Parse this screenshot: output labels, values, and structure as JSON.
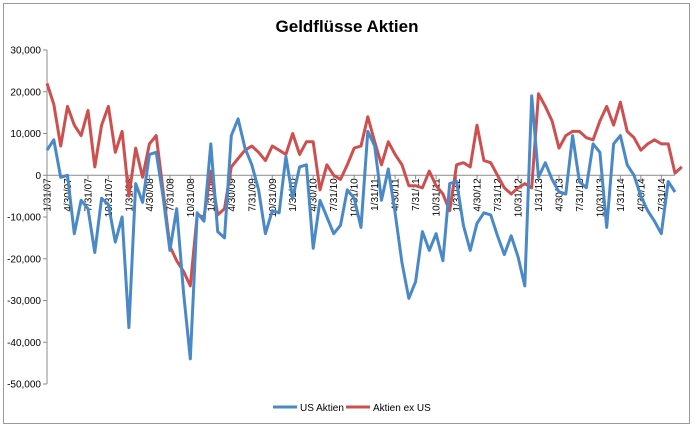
{
  "chart_data": {
    "type": "line",
    "title": "Geldflüsse Aktien",
    "xlabel": "",
    "ylabel": "",
    "ylim": [
      -50000,
      30000
    ],
    "yticks": [
      30000,
      20000,
      10000,
      0,
      -10000,
      -20000,
      -30000,
      -40000,
      -50000
    ],
    "ytick_labels": [
      "30,000",
      "20,000",
      "10,000",
      "0",
      "-10,000",
      "-20,000",
      "-30,000",
      "-40,000",
      "-50,000"
    ],
    "xtick_labels": [
      "1/31/07",
      "4/30/07",
      "7/31/07",
      "10/31/07",
      "1/31/08",
      "4/30/08",
      "7/31/08",
      "10/31/08",
      "1/31/09",
      "4/30/09",
      "7/31/09",
      "10/31/09",
      "1/31/10",
      "4/30/10",
      "7/31/10",
      "10/31/10",
      "1/31/11",
      "4/30/11",
      "7/31/11",
      "10/31/11",
      "1/31/12",
      "4/30/12",
      "7/31/12",
      "10/31/12",
      "1/31/13",
      "4/30/13",
      "7/31/13",
      "10/31/13",
      "1/31/14",
      "4/30/14",
      "7/31/14"
    ],
    "grid": false,
    "legend_position": "bottom",
    "series": [
      {
        "name": "US Aktien",
        "color": "#4a89c8",
        "values": [
          6000,
          8500,
          -500,
          0,
          -14000,
          -6000,
          -8000,
          -18500,
          -5500,
          -7000,
          -16000,
          -10000,
          -36500,
          -2000,
          -6500,
          5000,
          5500,
          -5000,
          -18000,
          -8000,
          -28000,
          -44000,
          -9000,
          -11000,
          7500,
          -13500,
          -15000,
          9500,
          13500,
          6500,
          2500,
          -3500,
          -14000,
          -8500,
          -9000,
          4500,
          -5500,
          2000,
          2500,
          -17500,
          -6000,
          -10000,
          -14000,
          -12000,
          -3500,
          -5500,
          -12500,
          10500,
          7000,
          -6000,
          1500,
          -9000,
          -21000,
          -29500,
          -25500,
          -13500,
          -18000,
          -14000,
          -20500,
          -2000,
          -1500,
          -12000,
          -18000,
          -11500,
          -9000,
          -9500,
          -14500,
          -19000,
          -14500,
          -19500,
          -26500,
          19000,
          -500,
          3000,
          -1000,
          -4000,
          -4500,
          9500,
          -1500,
          -3000,
          7500,
          5500,
          -12500,
          7500,
          9500,
          2500,
          0,
          -5000,
          -8500,
          -11000,
          -14000,
          -1500,
          -4000
        ]
      },
      {
        "name": "Aktien ex US",
        "color": "#cf4f4f",
        "values": [
          22000,
          17000,
          7000,
          16500,
          12000,
          9500,
          15500,
          2000,
          12000,
          16500,
          5500,
          10500,
          -5000,
          6500,
          -500,
          7500,
          9500,
          -3500,
          -17000,
          -20500,
          -23000,
          -26500,
          -9500,
          -10000,
          1000,
          -9500,
          -8000,
          2000,
          4000,
          6000,
          7000,
          5500,
          3500,
          7000,
          6000,
          5000,
          10000,
          5000,
          8000,
          8000,
          -3500,
          2500,
          0,
          -1000,
          2500,
          6500,
          7000,
          14000,
          8000,
          2500,
          8000,
          5000,
          2500,
          -2500,
          -2500,
          -3000,
          1000,
          -2500,
          -4500,
          -8500,
          2500,
          3000,
          2000,
          12000,
          3500,
          3000,
          0,
          -3000,
          -4500,
          -3000,
          -2000,
          -3000,
          19500,
          16500,
          13000,
          6500,
          9500,
          10500,
          10500,
          9000,
          8500,
          13000,
          16500,
          12000,
          17500,
          10500,
          9000,
          6000,
          7500,
          8500,
          7500,
          7500,
          500,
          2000
        ]
      }
    ]
  }
}
